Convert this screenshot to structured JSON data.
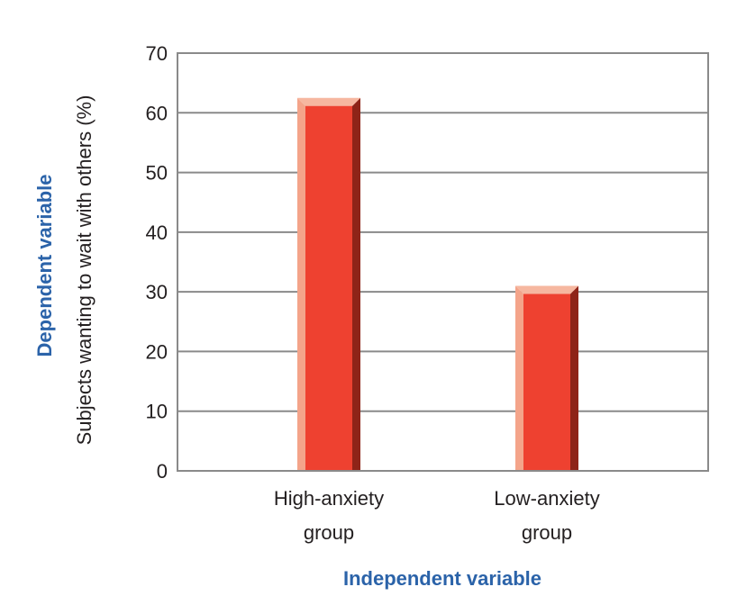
{
  "chart_data": {
    "type": "bar",
    "title": "",
    "categories": [
      [
        "High-anxiety",
        "group"
      ],
      [
        "Low-anxiety",
        "group"
      ]
    ],
    "values": [
      62.5,
      31
    ],
    "xlabel": "Independent variable",
    "ylabel": "Subjects wanting to wait with others (%)",
    "ylabel_outer": "Dependent variable",
    "ylim": [
      0,
      70
    ],
    "yticks": [
      0,
      10,
      20,
      30,
      40,
      50,
      60,
      70
    ],
    "grid": true,
    "legend": "none",
    "colors": {
      "front": "#ee4130",
      "left_bevel": "#f4a48a",
      "top_bevel": "#f6b7a0",
      "right_bevel": "#8e2418",
      "axis": "#8a8a8a",
      "blue_label": "#2b63a9"
    }
  }
}
